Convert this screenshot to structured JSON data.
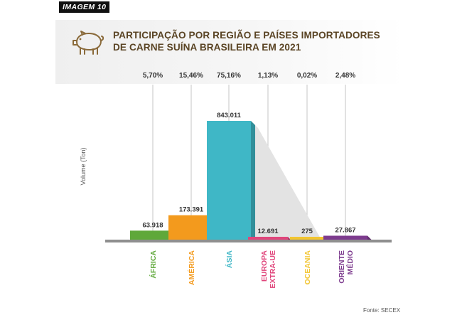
{
  "header": {
    "badge": "IMAGEM 10",
    "title_line1": "PARTICIPAÇÃO POR REGIÃO E PAÍSES IMPORTADORES",
    "title_line2": "DE CARNE SUÍNA BRASILEIRA EM 2021",
    "icon": "pig-icon"
  },
  "source": "Fonte: SECEX",
  "chart_data": {
    "type": "bar",
    "title": "PARTICIPAÇÃO POR REGIÃO E PAÍSES IMPORTADORES DE CARNE SUÍNA BRASILEIRA EM 2021",
    "ylabel": "Volume (Ton)",
    "xlabel": "",
    "ylim": [
      0,
      843011
    ],
    "grid": false,
    "categories": [
      "ÁFRICA",
      "AMÉRICA",
      "ÁSIA",
      "EUROPA EXTRA-UE",
      "OCEANIA",
      "ORIENTE MÉDIO"
    ],
    "category_lines": [
      [
        "ÁFRICA"
      ],
      [
        "AMÉRICA"
      ],
      [
        "ÁSIA"
      ],
      [
        "EUROPA",
        "EXTRA-UE"
      ],
      [
        "OCEANIA"
      ],
      [
        "ORIENTE",
        "MÉDIO"
      ]
    ],
    "values": [
      63918,
      173391,
      843011,
      12691,
      275,
      27867
    ],
    "value_labels": [
      "63.918",
      "173.391",
      "843.011",
      "12.691",
      "275",
      "27.867"
    ],
    "shares": [
      "5,70%",
      "15,46%",
      "75,16%",
      "1,13%",
      "0,02%",
      "2,48%"
    ],
    "colors": [
      "#5fa83a",
      "#f39a1d",
      "#3fb7c6",
      "#e0457b",
      "#f2c531",
      "#7d3b8e"
    ]
  }
}
